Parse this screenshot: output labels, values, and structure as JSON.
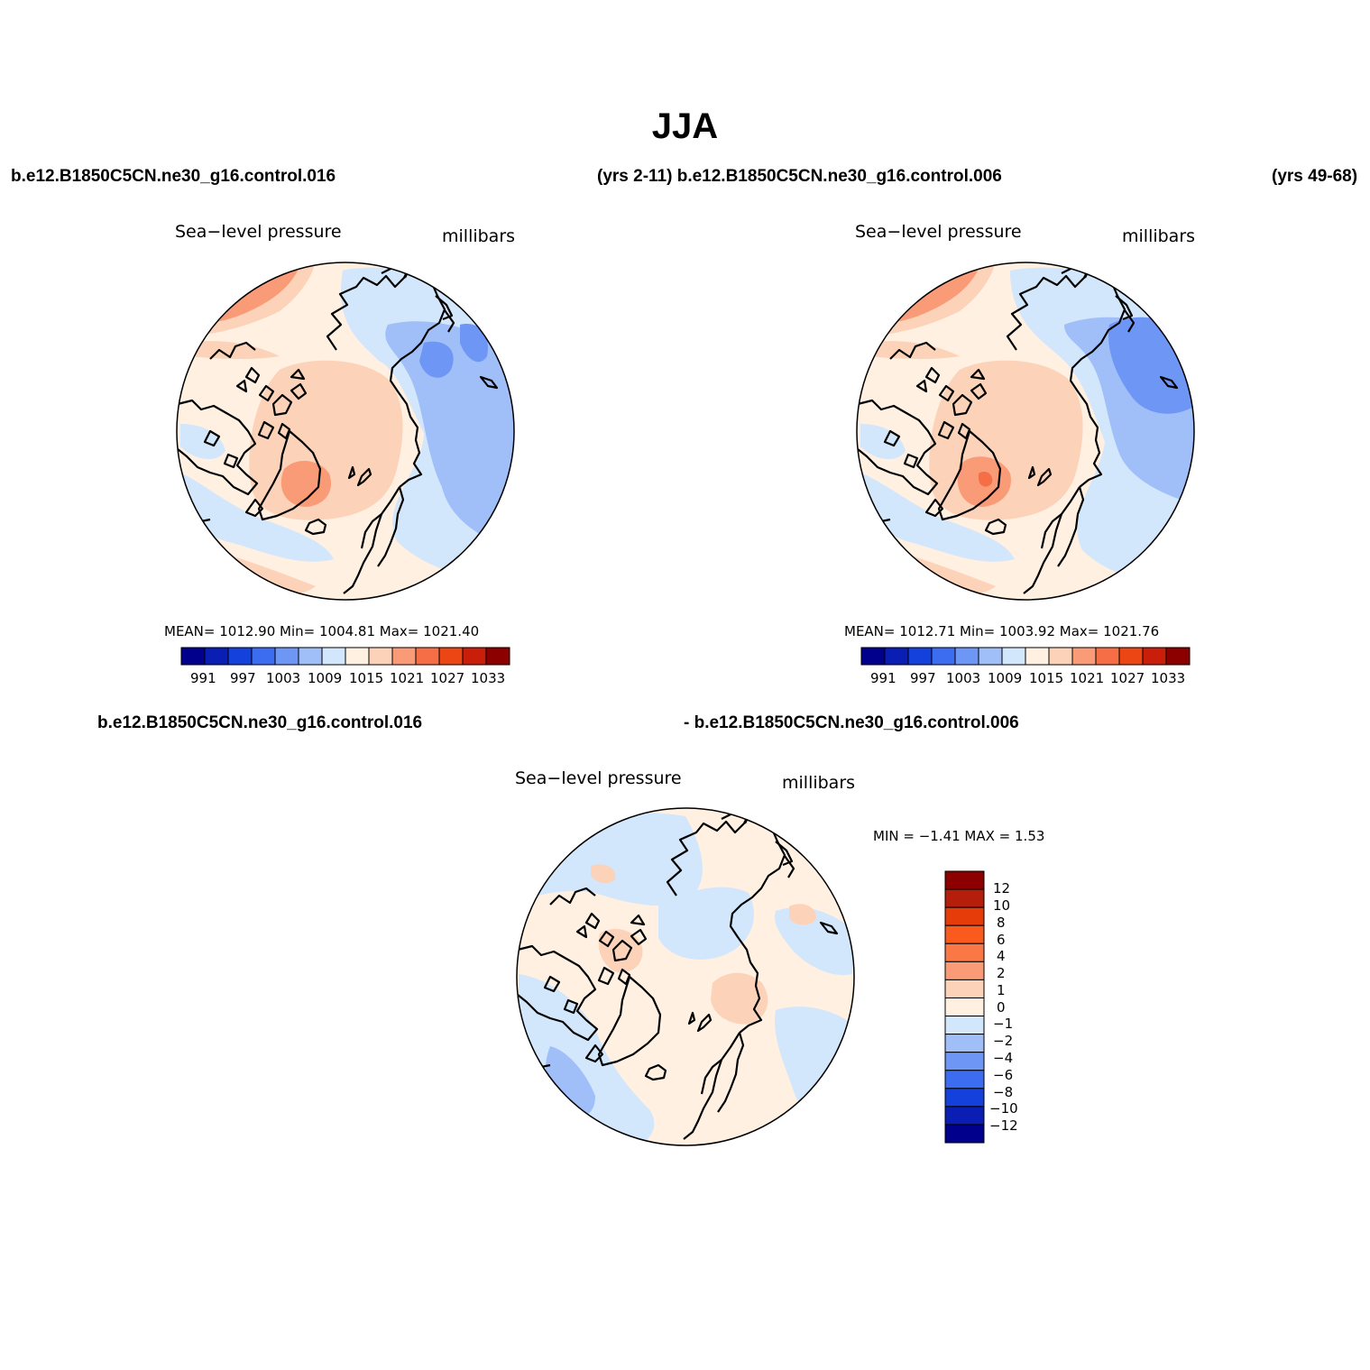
{
  "figure": {
    "title": "JJA",
    "header_left": "b.e12.B1850C5CN.ne30_g16.control.016",
    "header_mid": "(yrs 2-11) b.e12.B1850C5CN.ne30_g16.control.006",
    "header_right": "(yrs 49-68)",
    "diff_header_left": "b.e12.B1850C5CN.ne30_g16.control.016",
    "diff_header_right": "- b.e12.B1850C5CN.ne30_g16.control.006"
  },
  "panels": [
    {
      "variable": "Sea−level pressure",
      "units": "millibars",
      "stats": "MEAN=  1012.90   Min=  1004.81   Max=  1021.40"
    },
    {
      "variable": "Sea−level pressure",
      "units": "millibars",
      "stats": "MEAN=  1012.71   Min=  1003.92   Max=  1021.76"
    },
    {
      "variable": "Sea−level pressure",
      "units": "millibars",
      "stats": "MIN =   −1.41  MAX =    1.53"
    }
  ],
  "colorbar_h": {
    "colors": [
      "#00008c",
      "#0a1eb4",
      "#1440dc",
      "#3c6cf0",
      "#6e96f5",
      "#a0bef8",
      "#d2e6fc",
      "#fff0e1",
      "#fcd2b9",
      "#fa9b78",
      "#f56e46",
      "#eb4614",
      "#c81e0a",
      "#8c0000"
    ],
    "labels": [
      "991",
      "997",
      "1003",
      "1009",
      "1015",
      "1021",
      "1027",
      "1033"
    ]
  },
  "colorbar_v": {
    "colors": [
      "#8c0000",
      "#b41e0a",
      "#e63c0a",
      "#fa5a1e",
      "#fa7846",
      "#fa9b78",
      "#fcd2b9",
      "#fff0e1",
      "#d2e6fc",
      "#a0bef8",
      "#6e96f5",
      "#3c6cf0",
      "#1440dc",
      "#0a1eb4",
      "#00008c"
    ],
    "labels": [
      "12",
      "10",
      "8",
      "6",
      "4",
      "2",
      "1",
      "0",
      "−1",
      "−2",
      "−4",
      "−6",
      "−8",
      "−10",
      "−12"
    ]
  },
  "fills": {
    "base": "#fff0e1",
    "light_blue": "#d2e6fc",
    "mid_blue": "#a0bef8",
    "blue": "#6e96f5",
    "peach": "#fcd2b9",
    "salmon": "#fa9b78",
    "orange": "#f56e46"
  }
}
